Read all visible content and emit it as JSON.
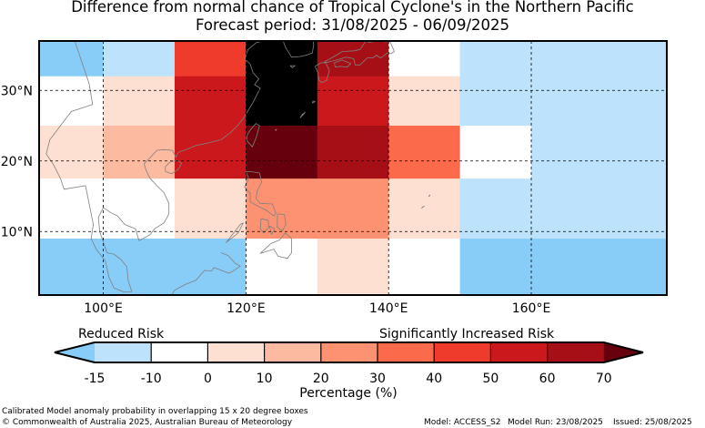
{
  "title": "Difference from normal chance of Tropical Cyclone's in the Northern Pacific",
  "subtitle": "Forecast period: 31/08/2025 - 06/09/2025",
  "map": {
    "lon_labels": [
      "100°E",
      "120°E",
      "140°E",
      "160°E"
    ],
    "lat_labels": [
      "30°N",
      "20°N",
      "10°N"
    ],
    "lon_range": [
      91,
      179
    ],
    "lat_range": [
      1,
      37
    ],
    "gridlines": true,
    "coastline_color": "#808080",
    "border_color": "#000000",
    "cells": [
      {
        "lon": [
          91,
          100
        ],
        "lat": [
          32,
          37
        ],
        "bin": 0
      },
      {
        "lon": [
          100,
          110
        ],
        "lat": [
          32,
          37
        ],
        "bin": 1
      },
      {
        "lon": [
          110,
          120
        ],
        "lat": [
          32,
          37
        ],
        "bin": 7
      },
      {
        "lon": [
          120,
          130
        ],
        "lat": [
          32,
          37
        ],
        "bin": 11
      },
      {
        "lon": [
          130,
          140
        ],
        "lat": [
          32,
          37
        ],
        "bin": 9
      },
      {
        "lon": [
          140,
          150
        ],
        "lat": [
          32,
          37
        ],
        "bin": 2
      },
      {
        "lon": [
          150,
          179
        ],
        "lat": [
          32,
          37
        ],
        "bin": 1
      },
      {
        "lon": [
          91,
          100
        ],
        "lat": [
          25,
          32
        ],
        "bin": 2
      },
      {
        "lon": [
          100,
          110
        ],
        "lat": [
          25,
          32
        ],
        "bin": 3
      },
      {
        "lon": [
          110,
          120
        ],
        "lat": [
          25,
          32
        ],
        "bin": 8
      },
      {
        "lon": [
          120,
          130
        ],
        "lat": [
          25,
          32
        ],
        "bin": 11
      },
      {
        "lon": [
          130,
          140
        ],
        "lat": [
          25,
          32
        ],
        "bin": 8
      },
      {
        "lon": [
          140,
          150
        ],
        "lat": [
          25,
          32
        ],
        "bin": 3
      },
      {
        "lon": [
          150,
          179
        ],
        "lat": [
          25,
          32
        ],
        "bin": 1
      },
      {
        "lon": [
          91,
          100
        ],
        "lat": [
          17.5,
          25
        ],
        "bin": 3
      },
      {
        "lon": [
          100,
          110
        ],
        "lat": [
          17.5,
          25
        ],
        "bin": 4
      },
      {
        "lon": [
          110,
          120
        ],
        "lat": [
          17.5,
          25
        ],
        "bin": 8
      },
      {
        "lon": [
          120,
          130
        ],
        "lat": [
          17.5,
          25
        ],
        "bin": 10
      },
      {
        "lon": [
          130,
          140
        ],
        "lat": [
          17.5,
          25
        ],
        "bin": 9
      },
      {
        "lon": [
          140,
          150
        ],
        "lat": [
          17.5,
          25
        ],
        "bin": 6
      },
      {
        "lon": [
          150,
          160
        ],
        "lat": [
          17.5,
          25
        ],
        "bin": 2
      },
      {
        "lon": [
          160,
          179
        ],
        "lat": [
          17.5,
          25
        ],
        "bin": 1
      },
      {
        "lon": [
          91,
          110
        ],
        "lat": [
          9,
          17.5
        ],
        "bin": 2
      },
      {
        "lon": [
          110,
          120
        ],
        "lat": [
          9,
          17.5
        ],
        "bin": 3
      },
      {
        "lon": [
          120,
          140
        ],
        "lat": [
          9,
          17.5
        ],
        "bin": 5
      },
      {
        "lon": [
          140,
          150
        ],
        "lat": [
          9,
          17.5
        ],
        "bin": 3
      },
      {
        "lon": [
          150,
          179
        ],
        "lat": [
          9,
          17.5
        ],
        "bin": 1
      },
      {
        "lon": [
          91,
          120
        ],
        "lat": [
          1,
          9
        ],
        "bin": 0
      },
      {
        "lon": [
          120,
          130
        ],
        "lat": [
          1,
          9
        ],
        "bin": 2
      },
      {
        "lon": [
          130,
          140
        ],
        "lat": [
          1,
          9
        ],
        "bin": 3
      },
      {
        "lon": [
          140,
          150
        ],
        "lat": [
          1,
          9
        ],
        "bin": 2
      },
      {
        "lon": [
          150,
          179
        ],
        "lat": [
          1,
          9
        ],
        "bin": 0
      }
    ]
  },
  "colorbar": {
    "label_left": "Reduced Risk",
    "label_right": "Significantly Increased Risk",
    "ticks": [
      "-15",
      "-10",
      "0",
      "10",
      "20",
      "30",
      "40",
      "50",
      "60",
      "70"
    ],
    "unit_label": "Percentage (%)",
    "colors": [
      "#88ccf8",
      "#bde2fb",
      "#ffffff",
      "#fee0d2",
      "#fcbba1",
      "#fc9272",
      "#fb6a4a",
      "#ef3b2c",
      "#cb181d",
      "#a50f15",
      "#67000d"
    ]
  },
  "footer": {
    "line1": "Calibrated Model anomaly probability in overlapping 15 x 20 degree boxes",
    "line2": "© Commonwealth of Australia 2025, Australian Bureau of Meteorology",
    "model": "Model: ACCESS_S2",
    "run": "Model Run: 23/08/2025",
    "issued": "Issued: 25/08/2025"
  }
}
